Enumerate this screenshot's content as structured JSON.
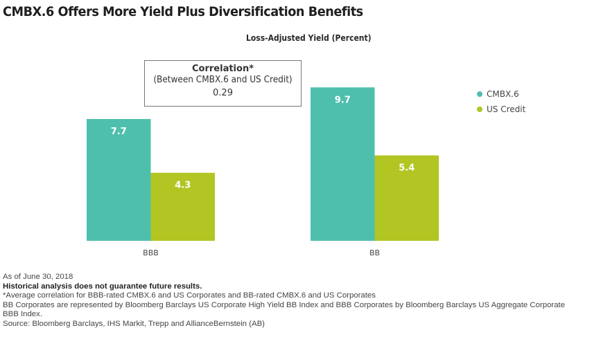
{
  "title": "CMBX.6 Offers More Yield Plus Diversification Benefits",
  "correlation_box": {
    "heading": "Correlation*",
    "subheading": "(Between CMBX.6 and US Credit)",
    "value": "0.29"
  },
  "colors": {
    "cmbx6": "#4fbfad",
    "us_credit": "#b2c523"
  },
  "legend": [
    {
      "label": "CMBX.6",
      "color": "#4fbfad"
    },
    {
      "label": "US Credit",
      "color": "#b2c523"
    }
  ],
  "chart_data": {
    "type": "bar",
    "title": "Loss-Adjusted Yield (Percent)",
    "xlabel": "",
    "ylabel": "",
    "categories": [
      "BBB",
      "BB"
    ],
    "series": [
      {
        "name": "CMBX.6",
        "values": [
          7.7,
          9.7
        ],
        "labels": [
          "7.7",
          "9.7"
        ]
      },
      {
        "name": "US Credit",
        "values": [
          4.3,
          5.4
        ],
        "labels": [
          "4.3",
          "5.4"
        ]
      }
    ],
    "ylim": [
      0,
      10
    ],
    "grid": false,
    "legend_position": "right",
    "annotation": "Correlation* (Between CMBX.6 and US Credit) 0.29"
  },
  "notes": {
    "as_of": "As of June 30, 2018",
    "disclaimer": "Historical analysis does not guarantee future results.",
    "footnote": "*Average correlation for BBB-rated CMBX.6 and US Corporates and BB-rated CMBX.6 and US Corporates",
    "index_note_1": "BB Corporates are represented by Bloomberg Barclays US Corporate High Yield BB Index and BBB Corporates by Bloomberg Barclays US Aggregate Corporate",
    "index_note_2": "BBB Index.",
    "source": "Source: Bloomberg Barclays, IHS Markit, Trepp and AllianceBernstein (AB)"
  }
}
